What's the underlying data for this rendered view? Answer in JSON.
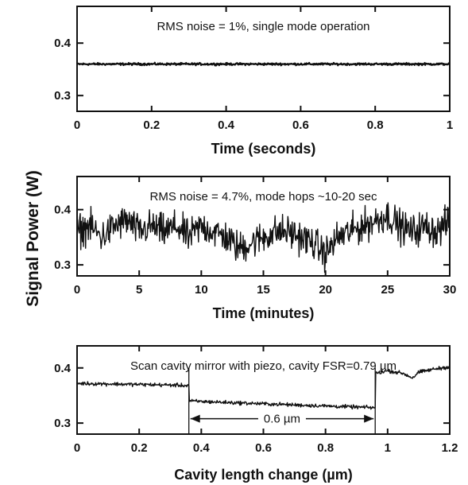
{
  "shared_ylabel": "Signal Power (W)",
  "chart_data": [
    {
      "type": "line",
      "annotation": "RMS noise = 1%, single mode operation",
      "xlabel": "Time (seconds)",
      "xlim": [
        0,
        1
      ],
      "ylim": [
        0.27,
        0.47
      ],
      "x_ticks": [
        0,
        0.2,
        0.4,
        0.6,
        0.8,
        1
      ],
      "x_tick_labels": [
        "0",
        "0.2",
        "0.4",
        "0.6",
        "0.8",
        "1"
      ],
      "y_ticks": [
        0.3,
        0.4
      ],
      "y_tick_labels": [
        "0.3",
        "0.4"
      ],
      "noise": 0.0015,
      "series": [
        {
          "x": [
            0,
            0.1,
            0.2,
            0.3,
            0.4,
            0.5,
            0.6,
            0.7,
            0.8,
            0.9,
            1.0
          ],
          "y": [
            0.36,
            0.36,
            0.36,
            0.36,
            0.36,
            0.36,
            0.36,
            0.36,
            0.36,
            0.36,
            0.36
          ]
        }
      ]
    },
    {
      "type": "line",
      "annotation": "RMS noise = 4.7%, mode hops ~10-20 sec",
      "xlabel": "Time (minutes)",
      "xlim": [
        0,
        30
      ],
      "ylim": [
        0.28,
        0.46
      ],
      "x_ticks": [
        0,
        5,
        10,
        15,
        20,
        25,
        30
      ],
      "x_tick_labels": [
        "0",
        "5",
        "10",
        "15",
        "20",
        "25",
        "30"
      ],
      "y_ticks": [
        0.3,
        0.4
      ],
      "y_tick_labels": [
        "0.3",
        "0.4"
      ],
      "noise": 0.022,
      "series": [
        {
          "x": [
            0,
            1,
            2,
            3,
            4,
            5,
            6,
            7,
            8,
            9,
            10,
            11,
            12,
            13,
            14,
            15,
            16,
            17,
            18,
            19,
            20,
            21,
            22,
            23,
            24,
            25,
            26,
            27,
            28,
            29,
            30
          ],
          "y": [
            0.36,
            0.37,
            0.35,
            0.37,
            0.38,
            0.36,
            0.37,
            0.36,
            0.37,
            0.35,
            0.37,
            0.36,
            0.35,
            0.33,
            0.34,
            0.35,
            0.36,
            0.36,
            0.35,
            0.34,
            0.32,
            0.35,
            0.36,
            0.37,
            0.38,
            0.39,
            0.37,
            0.36,
            0.37,
            0.36,
            0.38
          ]
        }
      ]
    },
    {
      "type": "line",
      "annotation": "Scan cavity mirror with piezo, cavity FSR=0.79 µm",
      "dimension_label": "0.6 µm",
      "dimension_range": [
        0.36,
        0.96
      ],
      "dimension_y": 0.308,
      "xlabel": "Cavity length change (µm)",
      "xlim": [
        0,
        1.2
      ],
      "ylim": [
        0.28,
        0.44
      ],
      "x_ticks": [
        0,
        0.2,
        0.4,
        0.6,
        0.8,
        1,
        1.2
      ],
      "x_tick_labels": [
        "0",
        "0.2",
        "0.4",
        "0.6",
        "0.8",
        "1",
        "1.2"
      ],
      "y_ticks": [
        0.3,
        0.4
      ],
      "y_tick_labels": [
        "0.3",
        "0.4"
      ],
      "noise": 0.0025,
      "hops": [
        0.36,
        0.96
      ],
      "series": [
        {
          "x": [
            0,
            0.1,
            0.2,
            0.3,
            0.36,
            0.36,
            0.5,
            0.6,
            0.7,
            0.8,
            0.9,
            0.96,
            0.96,
            1.0,
            1.05,
            1.08,
            1.1,
            1.15,
            1.2
          ],
          "y": [
            0.372,
            0.371,
            0.37,
            0.369,
            0.368,
            0.34,
            0.337,
            0.335,
            0.333,
            0.331,
            0.329,
            0.328,
            0.39,
            0.395,
            0.39,
            0.382,
            0.392,
            0.398,
            0.402
          ]
        }
      ]
    }
  ]
}
